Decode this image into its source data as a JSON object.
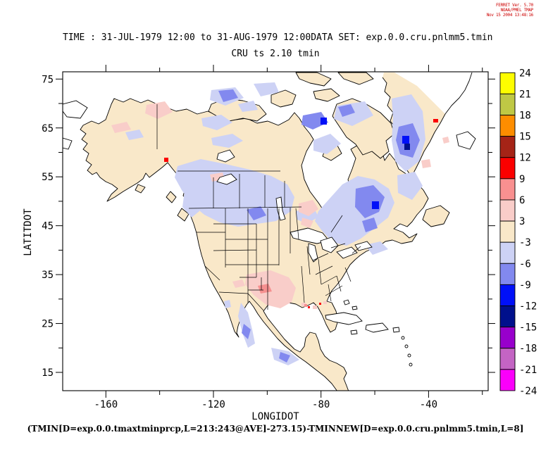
{
  "header": {
    "line1": "FERRET Ver. 5.70",
    "line2": "NOAA/PMEL TMAP",
    "line3": "Nov 15 2004 13:48:16",
    "color": "#cc0000"
  },
  "titles": {
    "time": "TIME : 31-JUL-1979 12:00 to 31-AUG-1979 12:00",
    "dataset": "DATA SET: exp.0.0.cru.pnlmm5.tmin",
    "subtitle": "CRU ts 2.10 tmin"
  },
  "axes": {
    "y_label": "LATITDOT",
    "x_label": "LONGIDOT",
    "y_ticks": [
      "75",
      "65",
      "55",
      "45",
      "35",
      "25",
      "15"
    ],
    "x_ticks": [
      "-160",
      "-120",
      "-80",
      "-40"
    ]
  },
  "colorbar": {
    "labels": [
      "24",
      "21",
      "18",
      "15",
      "12",
      "9",
      "6",
      "3",
      "-3",
      "-6",
      "-9",
      "-12",
      "-15",
      "-18",
      "-21",
      "-24"
    ],
    "colors": [
      "#fdfd00",
      "#bfc845",
      "#fd8d00",
      "#a52417",
      "#fb0000",
      "#f99090",
      "#f9cdc9",
      "#f9e8c9",
      "#cdd2f5",
      "#8289ef",
      "#0010f8",
      "#00108c",
      "#9800cc",
      "#c464c4",
      "#fb00fb"
    ]
  },
  "footer": {
    "formula": "(TMIN[D=exp.0.0.tmaxtminprcp,L=213:243@AVE]-273.15)-TMINNEW[D=exp.0.0.cru.pnlmm5.tmin,L=8]"
  },
  "chart_data": {
    "type": "heatmap",
    "title": "CRU ts 2.10 tmin",
    "time_range": "31-JUL-1979 12:00 to 31-AUG-1979 12:00",
    "dataset": "exp.0.0.cru.pnlmm5.tmin",
    "xlabel": "LONGIDOT",
    "ylabel": "LATITDOT",
    "xlim": [
      -176,
      -18
    ],
    "ylim": [
      11,
      76.5
    ],
    "x_tick_values": [
      -160,
      -120,
      -80,
      -40
    ],
    "y_tick_values": [
      75,
      65,
      55,
      45,
      35,
      25,
      15
    ],
    "levels": [
      -24,
      -21,
      -18,
      -15,
      -12,
      -9,
      -6,
      -3,
      3,
      6,
      9,
      12,
      15,
      18,
      21,
      24
    ],
    "legend_position": "right",
    "grid": false,
    "description": "Filled-contour difference map (model TMIN average minus CRU tmin) over North America. Most land is in the -3..3 band (cream). Negative anomalies (-3 to -12, lavender/periwinkle/blue) cover central Canada west of Hudson Bay, Quebec/Labrador, parts of the Arctic islands, southern Greenland, coastal British Columbia and the Sierra Madre in Mexico; a few deep-negative (navy) cells in Greenland. Positive anomalies (3 to 12, pink/salmon/red) appear over Texas/New Mexico/Oklahoma, near Lake Superior, Yukon/Alaska, the Gulf coast, Cuba, and spots on the Alaska panhandle and east Greenland coast."
  }
}
